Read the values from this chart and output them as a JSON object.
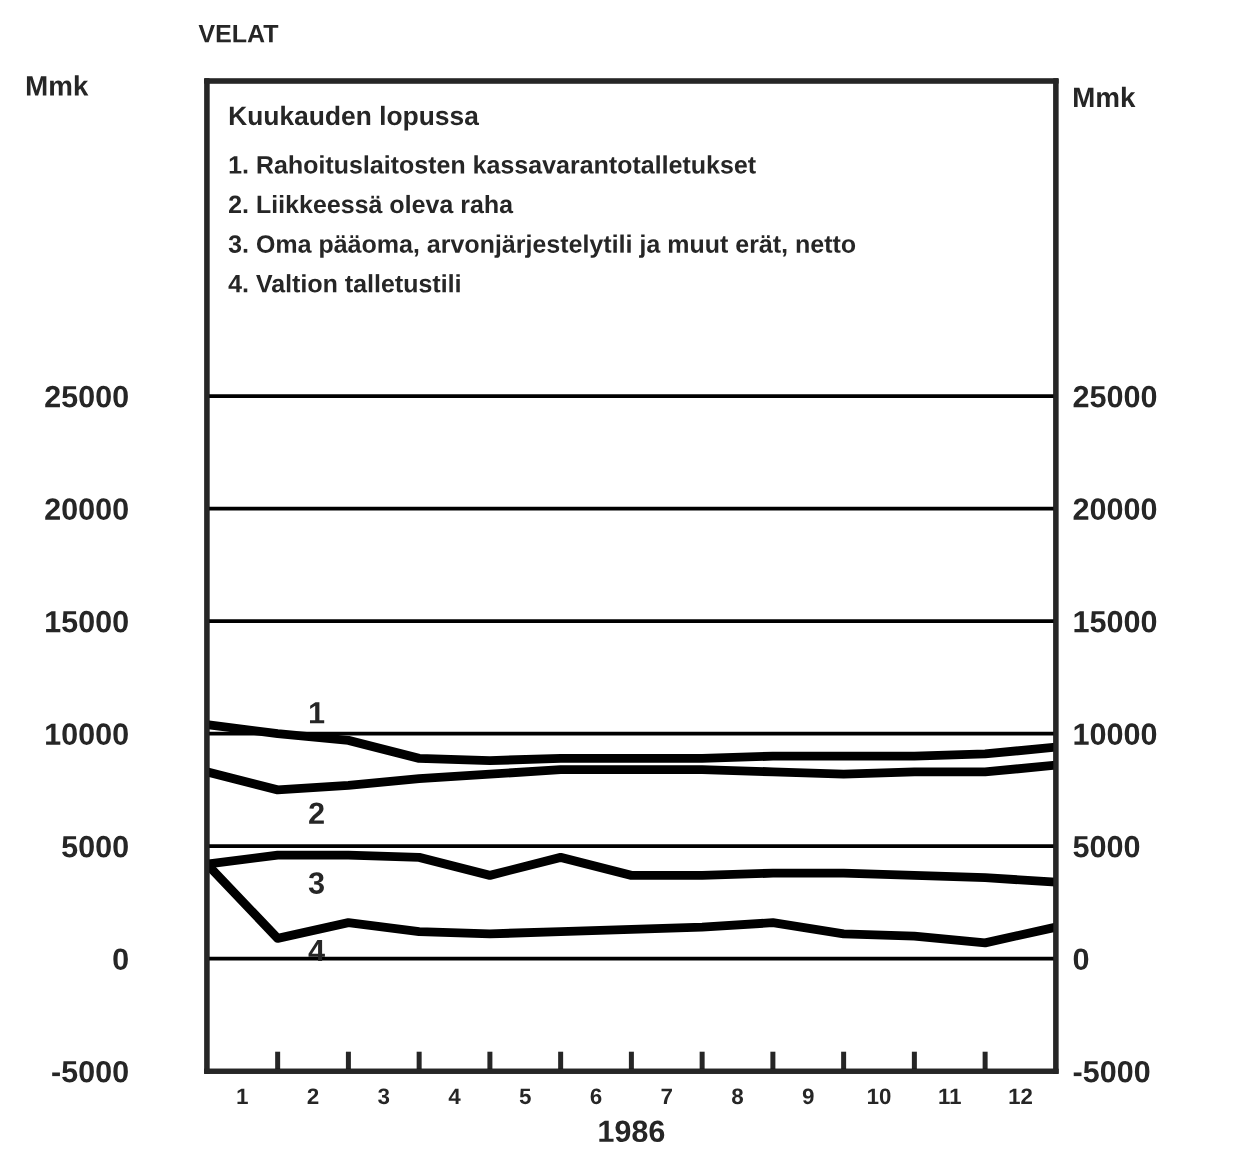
{
  "chart_data": {
    "type": "line",
    "title": "VELAT",
    "ylabel": "Mmk",
    "y2label": "Mmk",
    "xlabel": "1986",
    "legend_title": "Kuukauden lopussa",
    "annotations": [
      "1. Rahoituslaitosten kassavarantotalletukset",
      "2. Liikkeessä oleva raha",
      "3. Oma pääoma, arvonjärjestelytili ja muut erät, netto",
      "4. Valtion talletustili"
    ],
    "x": [
      0.5,
      1.5,
      2.5,
      3.5,
      4.5,
      5.5,
      6.5,
      7.5,
      8.5,
      9.5,
      10.5,
      11.5,
      12.5
    ],
    "series": [
      {
        "name": "1",
        "color": "#000000",
        "values": [
          10400,
          10000,
          9700,
          8900,
          8800,
          8900,
          8900,
          8900,
          9000,
          9000,
          9000,
          9100,
          9400
        ]
      },
      {
        "name": "2",
        "color": "#000000",
        "values": [
          8300,
          7500,
          7700,
          8000,
          8200,
          8400,
          8400,
          8400,
          8300,
          8200,
          8300,
          8300,
          8600
        ]
      },
      {
        "name": "3",
        "color": "#000000",
        "values": [
          4200,
          4600,
          4600,
          4500,
          3700,
          4500,
          3700,
          3700,
          3800,
          3800,
          3700,
          3600,
          3400
        ]
      },
      {
        "name": "4",
        "color": "#000000",
        "values": [
          4200,
          900,
          1600,
          1200,
          1100,
          1200,
          1300,
          1400,
          1600,
          1100,
          1000,
          700,
          1400
        ]
      }
    ],
    "xlim": [
      0.5,
      12.5
    ],
    "xticks": [
      {
        "value": 1,
        "label": "1"
      },
      {
        "value": 1.5,
        "label": null
      },
      {
        "value": 2,
        "label": "2"
      },
      {
        "value": 2.5,
        "label": null
      },
      {
        "value": 3,
        "label": "3"
      },
      {
        "value": 3.5,
        "label": null
      },
      {
        "value": 4,
        "label": "4"
      },
      {
        "value": 4.5,
        "label": null
      },
      {
        "value": 5,
        "label": "5"
      },
      {
        "value": 5.5,
        "label": null
      },
      {
        "value": 6,
        "label": "6"
      },
      {
        "value": 6.5,
        "label": null
      },
      {
        "value": 7,
        "label": "7"
      },
      {
        "value": 7.5,
        "label": null
      },
      {
        "value": 8,
        "label": "8"
      },
      {
        "value": 8.5,
        "label": null
      },
      {
        "value": 9,
        "label": "9"
      },
      {
        "value": 9.5,
        "label": null
      },
      {
        "value": 10,
        "label": "10"
      },
      {
        "value": 10.5,
        "label": null
      },
      {
        "value": 11,
        "label": "11"
      },
      {
        "value": 11.5,
        "label": null
      },
      {
        "value": 12,
        "label": "12"
      }
    ],
    "ylim": [
      -5000,
      39000
    ],
    "yticks": [
      -5000,
      0,
      5000,
      10000,
      15000,
      20000,
      25000
    ],
    "y2lim": [
      -5000,
      39000
    ],
    "y2ticks": [
      -5000,
      0,
      5000,
      10000,
      15000,
      20000,
      25000
    ],
    "grid": "y",
    "legend": false,
    "marker": "none",
    "line_style": "solid"
  }
}
